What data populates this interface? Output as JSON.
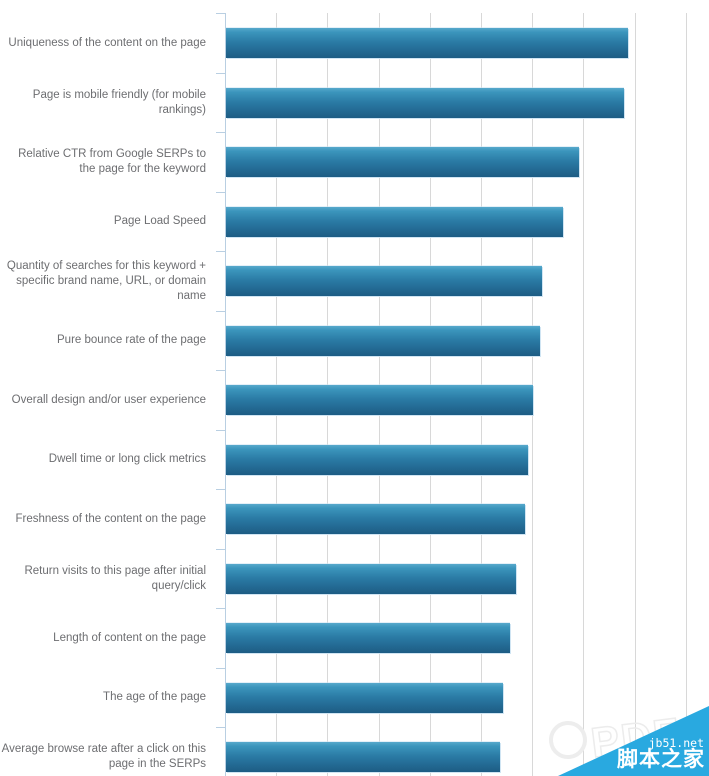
{
  "chart_data": {
    "type": "bar",
    "orientation": "horizontal",
    "title": "",
    "xlabel": "",
    "ylabel": "",
    "categories": [
      "Uniqueness of the content on the page",
      "Page is mobile friendly (for mobile rankings)",
      "Relative CTR from Google SERPs to the page for the keyword",
      "Page Load Speed",
      "Quantity of searches for this keyword + specific brand name, URL, or domain name",
      "Pure bounce rate of the page",
      "Overall design and/or user experience",
      "Dwell time or long click metrics",
      "Freshness of the content on the page",
      "Return visits to this page after initial query/click",
      "Length of content on the page",
      "The age of the page",
      "Average browse rate after a click on this page in the SERPs"
    ],
    "values": [
      7.85,
      7.78,
      6.9,
      6.58,
      6.17,
      6.13,
      6.0,
      5.9,
      5.84,
      5.66,
      5.55,
      5.41,
      5.35
    ],
    "xlim": [
      0,
      9.43
    ],
    "grid": true,
    "gridline_interval": 1,
    "x_tick_labels_visible": false,
    "legend": "none",
    "colors": {
      "bar_top": "#57a9cc",
      "bar_upper": "#3b95bc",
      "bar_mid": "#2a7aa4",
      "bar_bottom": "#1d5c84",
      "gridline": "#d8d8d8",
      "axis": "#b9cfe2",
      "label": "#6d6e71"
    }
  },
  "watermark": {
    "site": "jb51.net",
    "site_name": "脚本之家",
    "ghost_text": "PDF",
    "triangle_color": "#29a9e0",
    "text_color": "#ffffff"
  }
}
